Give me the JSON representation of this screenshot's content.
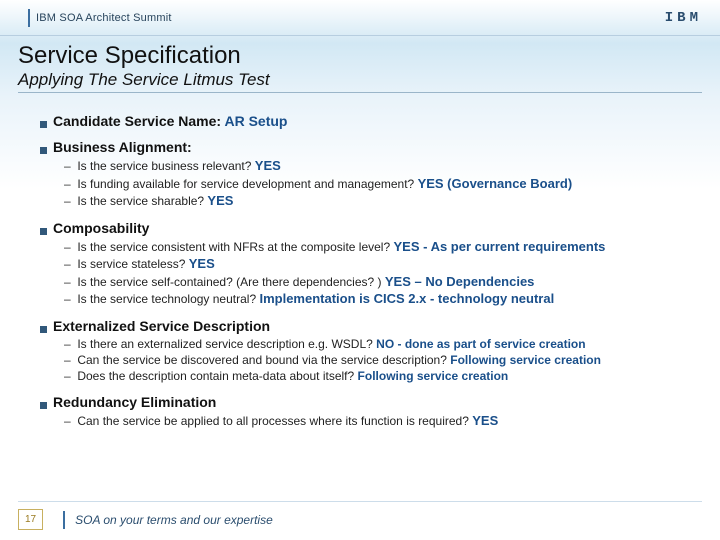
{
  "header": {
    "summit": "IBM SOA Architect Summit",
    "logo": "IBM"
  },
  "title": "Service Specification",
  "subtitle": "Applying The Service Litmus Test",
  "sections": [
    {
      "heading": "Candidate Service Name:",
      "headingAnswer": "AR Setup",
      "items": []
    },
    {
      "heading": "Business Alignment:",
      "items": [
        {
          "q": "Is the service business relevant?",
          "a": "YES"
        },
        {
          "q": "Is funding available for service development and management?",
          "a": "YES (Governance Board)"
        },
        {
          "q": "Is the service sharable?",
          "a": "YES"
        }
      ]
    },
    {
      "heading": "Composability",
      "items": [
        {
          "q": "Is the service consistent with NFRs at the composite level?",
          "a": "YES - As per current requirements"
        },
        {
          "q": "Is service stateless?",
          "a": "YES"
        },
        {
          "q": "Is the service self-contained?  (Are there dependencies? )",
          "a": "YES – No Dependencies"
        },
        {
          "q": "Is the service technology neutral?",
          "a": "Implementation is CICS 2.x - technology neutral"
        }
      ]
    },
    {
      "heading": "Externalized Service Description",
      "items": [
        {
          "q": "Is there an externalized service description e.g. WSDL?",
          "a": "NO - done as part of service creation"
        },
        {
          "q": "Can the service be discovered and bound via the service description?",
          "a": "Following service creation"
        },
        {
          "q": "Does the description contain meta-data about itself?",
          "a": "Following service creation"
        }
      ]
    },
    {
      "heading": "Redundancy Elimination",
      "items": [
        {
          "q": "Can the service be applied to all processes where its function is required?",
          "a": "YES"
        }
      ]
    }
  ],
  "footer": {
    "page": "17",
    "tagline": "SOA on your terms and our expertise"
  },
  "colors": {
    "accent": "#1a4f8a",
    "bullet": "#31587a",
    "bar": "#3b6ea0"
  }
}
